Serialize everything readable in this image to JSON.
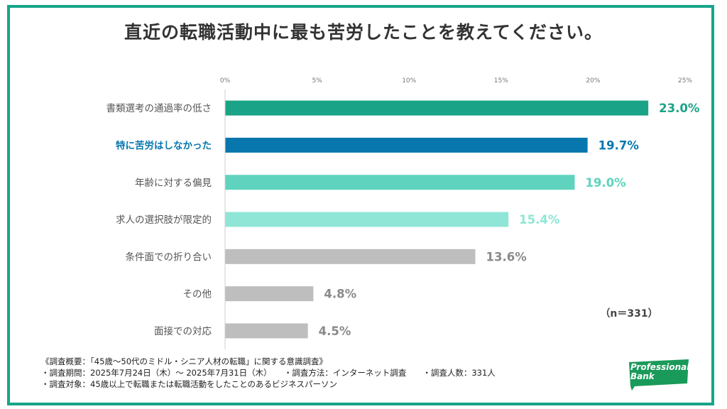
{
  "title": "直近の転職活動中に最も苦労したことを教えてください。",
  "sample_note": "（n＝331）",
  "chart_data": {
    "type": "bar",
    "orientation": "horizontal",
    "categories": [
      "書類選考の通過率の低さ",
      "特に苦労はしなかった",
      "年齢に対する偏見",
      "求人の選択肢が限定的",
      "条件面での折り合い",
      "その他",
      "面接での対応"
    ],
    "values": [
      23.0,
      19.7,
      19.0,
      15.4,
      13.6,
      4.8,
      4.5
    ],
    "value_labels": [
      "23.0%",
      "19.7%",
      "19.0%",
      "15.4%",
      "13.6%",
      "4.8%",
      "4.5%"
    ],
    "colors": [
      "#1aa387",
      "#0877ae",
      "#5fd3be",
      "#8fe6d6",
      "#bebebe",
      "#bebebe",
      "#bebebe"
    ],
    "label_colors": [
      "#1aa387",
      "#0877ae",
      "#5fd3be",
      "#8fe6d6",
      "#8a8a8a",
      "#8a8a8a",
      "#8a8a8a"
    ],
    "category_label_colors": [
      "#555555",
      "#0877ae",
      "#555555",
      "#555555",
      "#555555",
      "#555555",
      "#555555"
    ],
    "xlim": [
      0,
      25
    ],
    "ticks": [
      0,
      5,
      10,
      15,
      20,
      25
    ],
    "tick_labels": [
      "0%",
      "5%",
      "10%",
      "15%",
      "20%",
      "25%"
    ],
    "grid": false
  },
  "footer": {
    "line1": "《調査概要：「45歳～50代のミドル・シニア人材の転職」に関する意識調査》",
    "line2": "・調査期間：2025年7月24日（木）～ 2025年7月31日（木）　　・調査方法：インターネット調査　　・調査人数：331人",
    "line3": "・調査対象：45歳以上で転職または転職活動をしたことのあるビジネスパーソン"
  },
  "logo": {
    "line1": "Professional",
    "line2": "Bank",
    "color": "#1a9a5a"
  }
}
